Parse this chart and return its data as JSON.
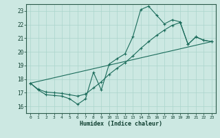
{
  "title": "",
  "xlabel": "Humidex (Indice chaleur)",
  "xlim": [
    -0.5,
    23.5
  ],
  "ylim": [
    15.5,
    23.5
  ],
  "xticks": [
    0,
    1,
    2,
    3,
    4,
    5,
    6,
    7,
    8,
    9,
    10,
    11,
    12,
    13,
    14,
    15,
    16,
    17,
    18,
    19,
    20,
    21,
    22,
    23
  ],
  "yticks": [
    16,
    17,
    18,
    19,
    20,
    21,
    22,
    23
  ],
  "bg_color": "#cce8e2",
  "grid_color": "#aad4cc",
  "line_color": "#1a6b5a",
  "curve1_x": [
    0,
    1,
    2,
    3,
    4,
    5,
    6,
    7,
    8,
    9,
    10,
    11,
    12,
    13,
    14,
    15,
    16,
    17,
    18,
    19,
    20,
    21,
    22,
    23
  ],
  "curve1_y": [
    17.7,
    17.2,
    16.85,
    16.8,
    16.75,
    16.55,
    16.15,
    16.55,
    18.5,
    17.2,
    19.1,
    19.5,
    19.85,
    21.1,
    23.1,
    23.35,
    22.7,
    22.05,
    22.35,
    22.2,
    20.55,
    21.1,
    20.85,
    20.75
  ],
  "curve2_x": [
    0,
    1,
    2,
    3,
    4,
    5,
    6,
    7,
    8,
    9,
    10,
    11,
    12,
    13,
    14,
    15,
    16,
    17,
    18,
    19,
    20,
    21,
    22,
    23
  ],
  "curve2_y": [
    17.7,
    17.25,
    17.05,
    17.0,
    16.95,
    16.85,
    16.75,
    16.9,
    17.35,
    17.8,
    18.35,
    18.8,
    19.2,
    19.7,
    20.25,
    20.75,
    21.2,
    21.6,
    21.95,
    22.15,
    20.55,
    21.1,
    20.85,
    20.75
  ],
  "line3_x": [
    0,
    23
  ],
  "line3_y": [
    17.7,
    20.75
  ]
}
